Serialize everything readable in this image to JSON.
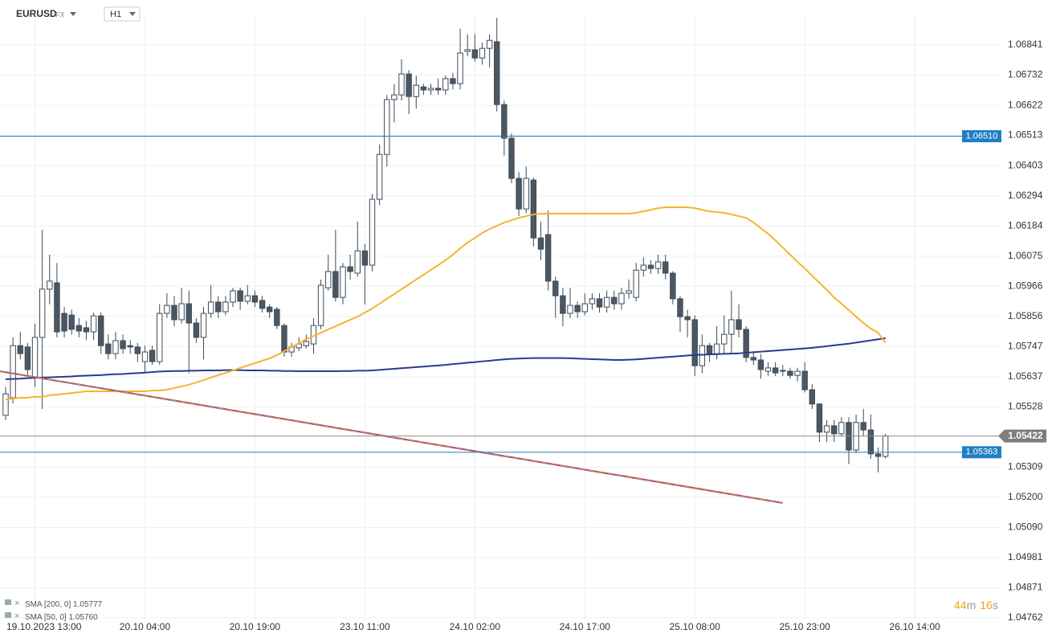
{
  "header": {
    "symbol": "EURUSD",
    "market": "FX",
    "timeframe": "H1"
  },
  "chart_data": {
    "type": "candlestick",
    "categories": [
      null,
      null,
      null,
      null,
      "19.10.2023 13:00",
      null,
      null,
      null,
      null,
      null,
      null,
      null,
      null,
      null,
      null,
      null,
      null,
      null,
      null,
      "20.10 04:00",
      null,
      null,
      null,
      null,
      null,
      null,
      null,
      null,
      null,
      null,
      null,
      null,
      null,
      null,
      "20.10 19:00",
      null,
      null,
      null,
      null,
      null,
      null,
      null,
      null,
      null,
      null,
      null,
      null,
      null,
      null,
      "23.10 11:00",
      null,
      null,
      null,
      null,
      null,
      null,
      null,
      null,
      null,
      null,
      null,
      null,
      null,
      null,
      "24.10 02:00",
      null,
      null,
      null,
      null,
      null,
      null,
      null,
      null,
      null,
      null,
      null,
      null,
      null,
      null,
      "24.10 17:00",
      null,
      null,
      null,
      null,
      null,
      null,
      null,
      null,
      null,
      null,
      null,
      null,
      null,
      null,
      "25.10 08:00",
      null,
      null,
      null,
      null,
      null,
      null,
      null,
      null,
      null,
      null,
      null,
      null,
      null,
      null,
      "25.10 23:00",
      null,
      null,
      null,
      null,
      null,
      null,
      null,
      null,
      null,
      null,
      null,
      null,
      null,
      null,
      "26.10 14:00"
    ],
    "open": [
      1.05497,
      1.05561,
      1.0575,
      1.05745,
      1.05634,
      1.0578,
      1.05955,
      1.05978,
      1.05867,
      1.05861,
      1.05823,
      1.05815,
      1.058,
      1.05858,
      1.05756,
      1.05721,
      1.05768,
      1.0575,
      1.05745,
      1.05692,
      1.05733,
      1.05692,
      1.05867,
      1.05896,
      1.05844,
      1.05902,
      1.05832,
      1.0578,
      1.05867,
      1.05908,
      1.05873,
      1.05908,
      1.05949,
      1.05911,
      1.05931,
      1.05914,
      1.0589,
      1.05882,
      1.05823,
      1.05727,
      1.05742,
      1.0575,
      1.05756,
      1.05823,
      1.0596,
      1.06019,
      1.05925,
      1.06036,
      1.06013,
      1.06094,
      1.06042,
      1.06281,
      1.06444,
      1.06643,
      1.0666,
      1.06736,
      1.06654,
      1.06689,
      1.06678,
      1.06684,
      1.06678,
      1.06719,
      1.06701,
      1.06818,
      1.06824,
      1.06794,
      1.06829,
      1.06853,
      1.06625,
      1.06503,
      1.06357,
      1.06246,
      1.06351,
      1.06141,
      1.06153,
      1.05984,
      1.05931,
      1.05867,
      1.05896,
      1.05873,
      1.05902,
      1.0592,
      1.0589,
      1.05925,
      1.05902,
      1.0594,
      1.05925,
      1.06024,
      1.06042,
      1.0603,
      1.06054,
      1.06013,
      1.0592,
      1.05855,
      1.05844,
      1.05677,
      1.0575,
      1.05721,
      1.05756,
      1.05791,
      1.05844,
      1.05809,
      1.05707,
      1.05698,
      1.05657,
      1.05669,
      1.0566,
      1.05657,
      1.05642,
      1.05657,
      1.0559,
      1.05538,
      1.05436,
      1.05459,
      1.0543,
      1.05471,
      1.05371,
      1.05471,
      1.05444,
      1.05357,
      1.05348,
      null,
      null,
      null,
      null
    ],
    "high": [
      1.056,
      1.0578,
      1.058,
      1.0576,
      1.0583,
      1.0617,
      1.0608,
      1.0605,
      1.0589,
      1.0588,
      1.0585,
      1.0584,
      1.0587,
      1.0587,
      1.0579,
      1.058,
      1.0579,
      1.0577,
      1.0576,
      1.0575,
      1.0575,
      1.059,
      1.0594,
      1.0593,
      1.0596,
      1.0595,
      1.0585,
      1.0589,
      1.0597,
      1.0593,
      1.0593,
      1.0596,
      1.0596,
      1.0597,
      1.0595,
      1.0593,
      1.059,
      1.0589,
      1.0583,
      1.0576,
      1.0578,
      1.0579,
      1.0585,
      1.0599,
      1.0608,
      1.0617,
      1.0605,
      1.0608,
      1.062,
      1.0612,
      1.063,
      1.0648,
      1.0666,
      1.067,
      1.0679,
      1.0675,
      1.0673,
      1.067,
      1.067,
      1.0672,
      1.0673,
      1.0674,
      1.069,
      1.0688,
      1.0688,
      1.0685,
      1.0688,
      1.0694,
      1.0664,
      1.0652,
      1.0638,
      1.064,
      1.0636,
      1.062,
      1.0624,
      1.06,
      1.0596,
      1.0596,
      1.0591,
      1.0594,
      1.0594,
      1.0594,
      1.0595,
      1.0595,
      1.0596,
      1.0599,
      1.0605,
      1.0607,
      1.0606,
      1.0608,
      1.0608,
      1.0602,
      1.0593,
      1.0588,
      1.0586,
      1.0579,
      1.0576,
      1.0582,
      1.0586,
      1.0595,
      1.059,
      1.0582,
      1.0573,
      1.0572,
      1.0569,
      1.0569,
      1.0568,
      1.0567,
      1.0567,
      1.0569,
      1.0561,
      1.0554,
      1.0548,
      1.0548,
      1.0549,
      1.0549,
      1.055,
      1.0552,
      1.055,
      1.0538,
      1.0543,
      null,
      null,
      null,
      null
    ],
    "low": [
      1.0548,
      1.0554,
      1.057,
      1.0564,
      1.056,
      1.0552,
      1.059,
      1.0578,
      1.0578,
      1.0579,
      1.0578,
      1.0577,
      1.0577,
      1.0572,
      1.057,
      1.057,
      1.0572,
      1.0572,
      1.0569,
      1.0565,
      1.0568,
      1.0568,
      1.0585,
      1.0582,
      1.0583,
      1.0565,
      1.0576,
      1.057,
      1.0585,
      1.0585,
      1.0586,
      1.0589,
      1.0588,
      1.059,
      1.0589,
      1.0587,
      1.0585,
      1.0581,
      1.0571,
      1.0571,
      1.0573,
      1.0574,
      1.0572,
      1.0581,
      1.0595,
      1.0591,
      1.059,
      1.0599,
      1.06,
      1.059,
      1.0602,
      1.0626,
      1.064,
      1.0656,
      1.0664,
      1.0659,
      1.0661,
      1.0666,
      1.0666,
      1.0666,
      1.0666,
      1.0668,
      1.0668,
      1.068,
      1.0678,
      1.0677,
      1.0676,
      1.066,
      1.0644,
      1.0634,
      1.0622,
      1.0623,
      1.0611,
      1.0606,
      1.0595,
      1.0585,
      1.0582,
      1.0585,
      1.0585,
      1.0586,
      1.0588,
      1.0587,
      1.0587,
      1.0588,
      1.0588,
      1.0592,
      1.0591,
      1.06,
      1.0601,
      1.0601,
      1.0599,
      1.059,
      1.058,
      1.0578,
      1.0564,
      1.0565,
      1.0569,
      1.057,
      1.0572,
      1.0572,
      1.0578,
      1.0569,
      1.0568,
      1.0563,
      1.0564,
      1.0564,
      1.0564,
      1.0563,
      1.0562,
      1.0558,
      1.0552,
      1.054,
      1.054,
      1.054,
      1.0542,
      1.0532,
      1.0536,
      1.0542,
      1.0534,
      1.0529,
      1.0534,
      null,
      null,
      null,
      null
    ],
    "close": [
      1.05575,
      1.0575,
      1.05721,
      1.05663,
      1.0578,
      1.05955,
      1.05984,
      1.058,
      1.05803,
      1.05809,
      1.05803,
      1.058,
      1.05858,
      1.0575,
      1.05721,
      1.05768,
      1.05739,
      1.05745,
      1.05721,
      1.05727,
      1.05692,
      1.05867,
      1.05896,
      1.05844,
      1.05902,
      1.05832,
      1.0578,
      1.05867,
      1.05908,
      1.05873,
      1.05908,
      1.05949,
      1.05911,
      1.05931,
      1.05908,
      1.05885,
      1.05873,
      1.05823,
      1.05727,
      1.05745,
      1.05756,
      1.05765,
      1.05823,
      1.05969,
      1.06019,
      1.05925,
      1.06036,
      1.06019,
      1.06094,
      1.06042,
      1.06281,
      1.06444,
      1.06643,
      1.0666,
      1.06736,
      1.06654,
      1.06695,
      1.06678,
      1.06684,
      1.06678,
      1.06719,
      1.06701,
      1.06812,
      1.06824,
      1.06794,
      1.06829,
      1.06858,
      1.06625,
      1.06503,
      1.06357,
      1.06246,
      1.06357,
      1.06141,
      1.061,
      1.05984,
      1.05931,
      1.05867,
      1.05896,
      1.05873,
      1.05902,
      1.0592,
      1.0589,
      1.05925,
      1.05902,
      1.0594,
      1.05949,
      1.06024,
      1.06042,
      1.0603,
      1.06054,
      1.06013,
      1.0592,
      1.05855,
      1.05844,
      1.05677,
      1.0575,
      1.05721,
      1.05756,
      1.05791,
      1.05844,
      1.05809,
      1.05707,
      1.05698,
      1.05663,
      1.05669,
      1.05651,
      1.05657,
      1.05642,
      1.05657,
      1.0559,
      1.05538,
      1.05436,
      1.05459,
      1.0543,
      1.05471,
      1.05371,
      1.05471,
      1.05444,
      1.05357,
      1.05348,
      1.05422,
      null,
      null,
      null,
      null
    ],
    "up_color": "#ffffff",
    "down_color": "#4b5863",
    "candle_stroke": "#3e4a56",
    "series": [
      {
        "name": "SMA [200, 0]",
        "value_label": "1.05777",
        "color": "#2b3a8f",
        "values": [
          1.05628,
          1.05629,
          1.0563,
          1.05632,
          1.05633,
          1.05634,
          1.05635,
          1.05636,
          1.05637,
          1.05638,
          1.0564,
          1.05641,
          1.05642,
          1.05643,
          1.05645,
          1.05646,
          1.05647,
          1.05649,
          1.0565,
          1.05652,
          1.05654,
          1.05656,
          1.05657,
          1.05658,
          1.05658,
          1.05659,
          1.05659,
          1.0566,
          1.0566,
          1.0566,
          1.05661,
          1.05661,
          1.05661,
          1.0566,
          1.0566,
          1.0566,
          1.05659,
          1.05659,
          1.05658,
          1.05658,
          1.05657,
          1.05657,
          1.05657,
          1.05657,
          1.05657,
          1.05657,
          1.05658,
          1.05658,
          1.05659,
          1.05659,
          1.0566,
          1.05662,
          1.05664,
          1.05666,
          1.05668,
          1.0567,
          1.05672,
          1.05674,
          1.05676,
          1.05678,
          1.0568,
          1.05683,
          1.05685,
          1.05688,
          1.0569,
          1.05693,
          1.05695,
          1.05698,
          1.057,
          1.05702,
          1.05703,
          1.05704,
          1.05705,
          1.05705,
          1.05705,
          1.05705,
          1.05705,
          1.05704,
          1.05703,
          1.05702,
          1.05701,
          1.057,
          1.05699,
          1.05698,
          1.05698,
          1.05699,
          1.057,
          1.05702,
          1.05704,
          1.05706,
          1.05708,
          1.0571,
          1.05712,
          1.05714,
          1.05716,
          1.05717,
          1.05718,
          1.05719,
          1.0572,
          1.05721,
          1.05722,
          1.05724,
          1.05726,
          1.05728,
          1.0573,
          1.05732,
          1.05734,
          1.05736,
          1.05738,
          1.0574,
          1.05742,
          1.05745,
          1.05748,
          1.05751,
          1.05754,
          1.05757,
          1.05761,
          1.05765,
          1.05769,
          1.05773,
          1.05777,
          null,
          null,
          null,
          null
        ]
      },
      {
        "name": "SMA [50, 0]",
        "value_label": "1.05760",
        "color": "#f3b52f",
        "values": [
          1.05555,
          1.05558,
          1.05561,
          1.05561,
          1.05564,
          1.05564,
          1.0557,
          1.05572,
          1.05575,
          1.05578,
          1.05581,
          1.05584,
          1.05584,
          1.05584,
          1.05584,
          1.05584,
          1.05584,
          1.05584,
          1.05584,
          1.05584,
          1.05587,
          1.05587,
          1.0559,
          1.05596,
          1.05602,
          1.05608,
          1.05616,
          1.05625,
          1.05634,
          1.05643,
          1.05651,
          1.0566,
          1.05669,
          1.05678,
          1.05686,
          1.05695,
          1.05704,
          1.05715,
          1.0573,
          1.05745,
          1.05759,
          1.05774,
          1.05785,
          1.05797,
          1.05809,
          1.0582,
          1.05832,
          1.05844,
          1.05855,
          1.0587,
          1.05885,
          1.05902,
          1.0592,
          1.05937,
          1.05955,
          1.05972,
          1.0599,
          1.06007,
          1.06025,
          1.06042,
          1.0606,
          1.0608,
          1.06103,
          1.06124,
          1.06141,
          1.06159,
          1.06173,
          1.06185,
          1.06197,
          1.06205,
          1.06214,
          1.0622,
          1.06226,
          1.06229,
          1.06229,
          1.06229,
          1.06229,
          1.06229,
          1.06229,
          1.06229,
          1.06229,
          1.06229,
          1.06229,
          1.06229,
          1.06229,
          1.06229,
          1.06232,
          1.06237,
          1.06243,
          1.06249,
          1.06252,
          1.06252,
          1.06252,
          1.06252,
          1.06249,
          1.06243,
          1.06237,
          1.06235,
          1.06232,
          1.06226,
          1.0622,
          1.06214,
          1.06197,
          1.06176,
          1.06156,
          1.06132,
          1.06106,
          1.0608,
          1.06054,
          1.0603,
          1.06004,
          1.05978,
          1.05952,
          1.05925,
          1.05902,
          1.05879,
          1.05855,
          1.05832,
          1.05812,
          1.05797,
          1.0576,
          null,
          null,
          null,
          null
        ]
      }
    ],
    "levels": [
      {
        "value": 1.0651,
        "label": "1.06510"
      },
      1.05363
    ],
    "level_color": "#1f7fc4",
    "last_price": 1.05422,
    "trendline": {
      "start": 1.05657,
      "end": 1.05179
    },
    "ylim": [
      1.04753,
      1.06952
    ],
    "yticks": [
      1.06841,
      1.06732,
      1.06622,
      1.06513,
      1.06403,
      1.06294,
      1.06184,
      1.06075,
      1.05966,
      1.05856,
      1.05747,
      1.05637,
      1.05528,
      1.05309,
      {
        "value": 1.052,
        "label": "1.05200"
      },
      {
        "value": 1.0509,
        "label": "1.05090"
      },
      1.04981,
      1.04871,
      1.04762
    ],
    "grid": true,
    "countdown": [
      "44",
      "m",
      "16",
      "s"
    ]
  }
}
